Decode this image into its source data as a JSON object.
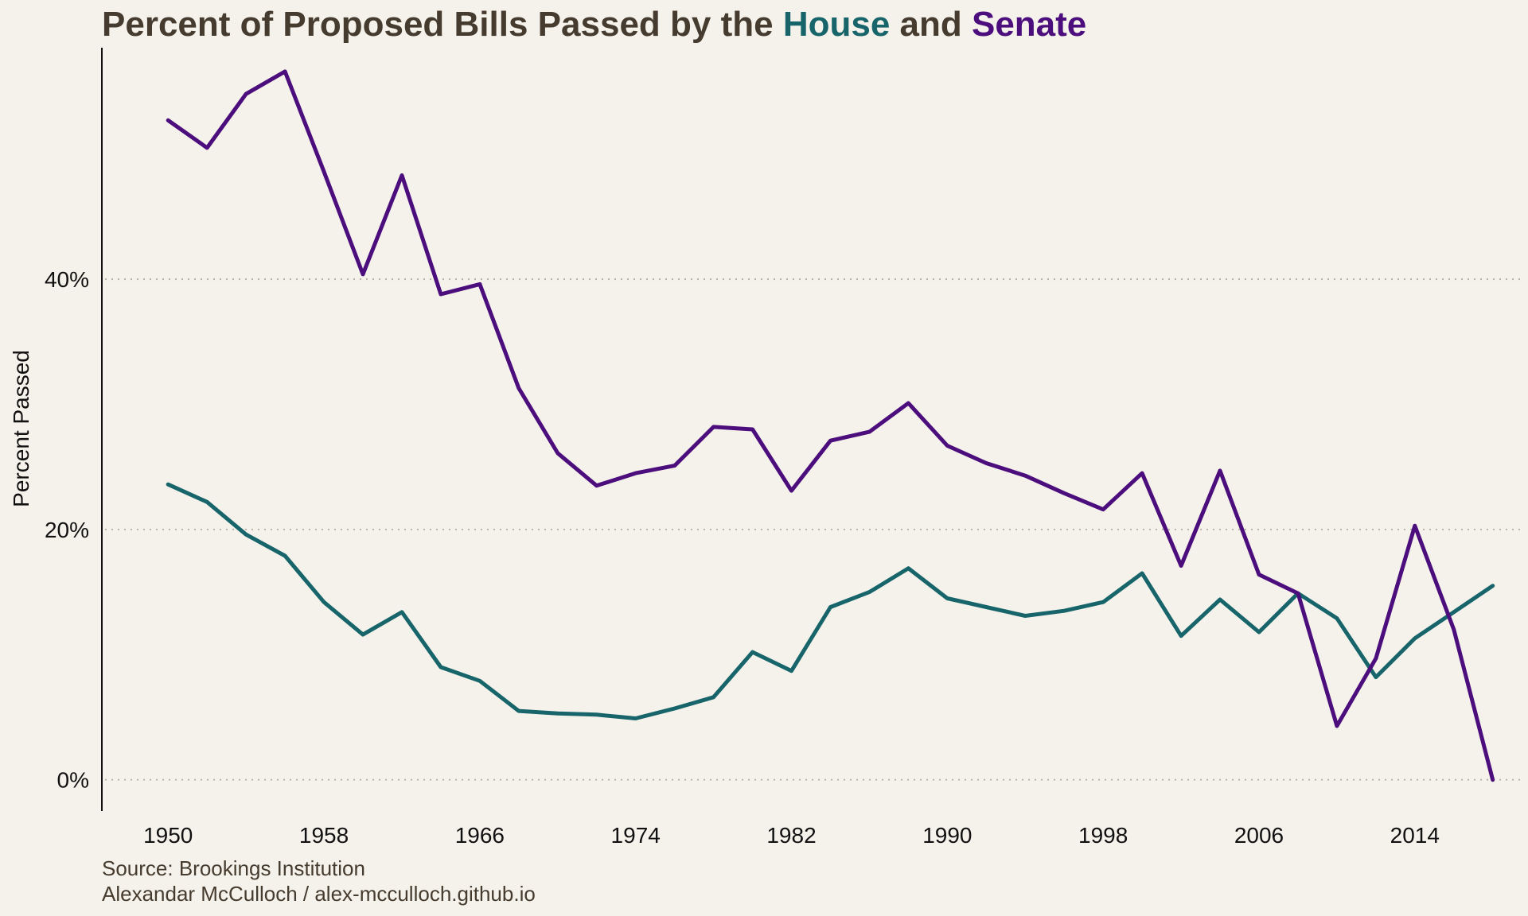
{
  "title": {
    "part1": "Percent of Proposed Bills Passed by the ",
    "house_word": "House",
    "part2": " and ",
    "senate_word": "Senate"
  },
  "source": {
    "line1": "Source: Brookings Institution",
    "line2": "Alexandar McCulloch / alex-mcculloch.github.io"
  },
  "colors": {
    "background": "#f5f2eb",
    "title_text": "#453b2e",
    "house": "#17656a",
    "senate": "#4b0e7c",
    "grid": "#b8b2a8"
  },
  "chart_data": {
    "type": "line",
    "title": "Percent of Proposed Bills Passed by the House and Senate",
    "xlabel": "",
    "ylabel": "Percent Passed",
    "xlim": [
      1946.6,
      2019.4
    ],
    "ylim": [
      -2.5,
      58.5
    ],
    "xticks": [
      1950,
      1958,
      1966,
      1974,
      1982,
      1990,
      1998,
      2006,
      2014
    ],
    "yticks": [
      0,
      20,
      40
    ],
    "ytick_labels": [
      "0%",
      "20%",
      "40%"
    ],
    "grid": "horizontal dotted",
    "legend": "none (series named by colored title words)",
    "x": [
      1950,
      1952,
      1954,
      1956,
      1958,
      1960,
      1962,
      1964,
      1966,
      1968,
      1970,
      1972,
      1974,
      1976,
      1978,
      1980,
      1982,
      1984,
      1986,
      1988,
      1990,
      1992,
      1994,
      1996,
      1998,
      2000,
      2002,
      2004,
      2006,
      2008,
      2010,
      2012,
      2014,
      2016,
      2018
    ],
    "series": [
      {
        "name": "House",
        "color": "#17656a",
        "values": [
          23.6,
          22.2,
          19.6,
          17.9,
          14.2,
          11.6,
          13.4,
          9.0,
          7.9,
          5.5,
          5.3,
          5.2,
          4.9,
          5.7,
          6.6,
          10.2,
          8.7,
          13.8,
          15.0,
          16.9,
          14.5,
          13.8,
          13.1,
          13.5,
          14.2,
          16.5,
          11.5,
          14.4,
          11.8,
          14.9,
          12.9,
          8.2,
          11.3,
          13.4,
          15.5
        ]
      },
      {
        "name": "Senate",
        "color": "#4b0e7c",
        "values": [
          52.7,
          50.5,
          54.8,
          56.6,
          48.6,
          40.4,
          48.3,
          38.8,
          39.6,
          31.3,
          26.1,
          23.5,
          24.5,
          25.1,
          28.2,
          28.0,
          23.1,
          27.1,
          27.8,
          30.1,
          26.7,
          25.3,
          24.3,
          22.9,
          21.6,
          24.5,
          17.1,
          24.7,
          16.4,
          14.9,
          4.3,
          9.7,
          20.3,
          12.0,
          0.0
        ]
      }
    ]
  }
}
